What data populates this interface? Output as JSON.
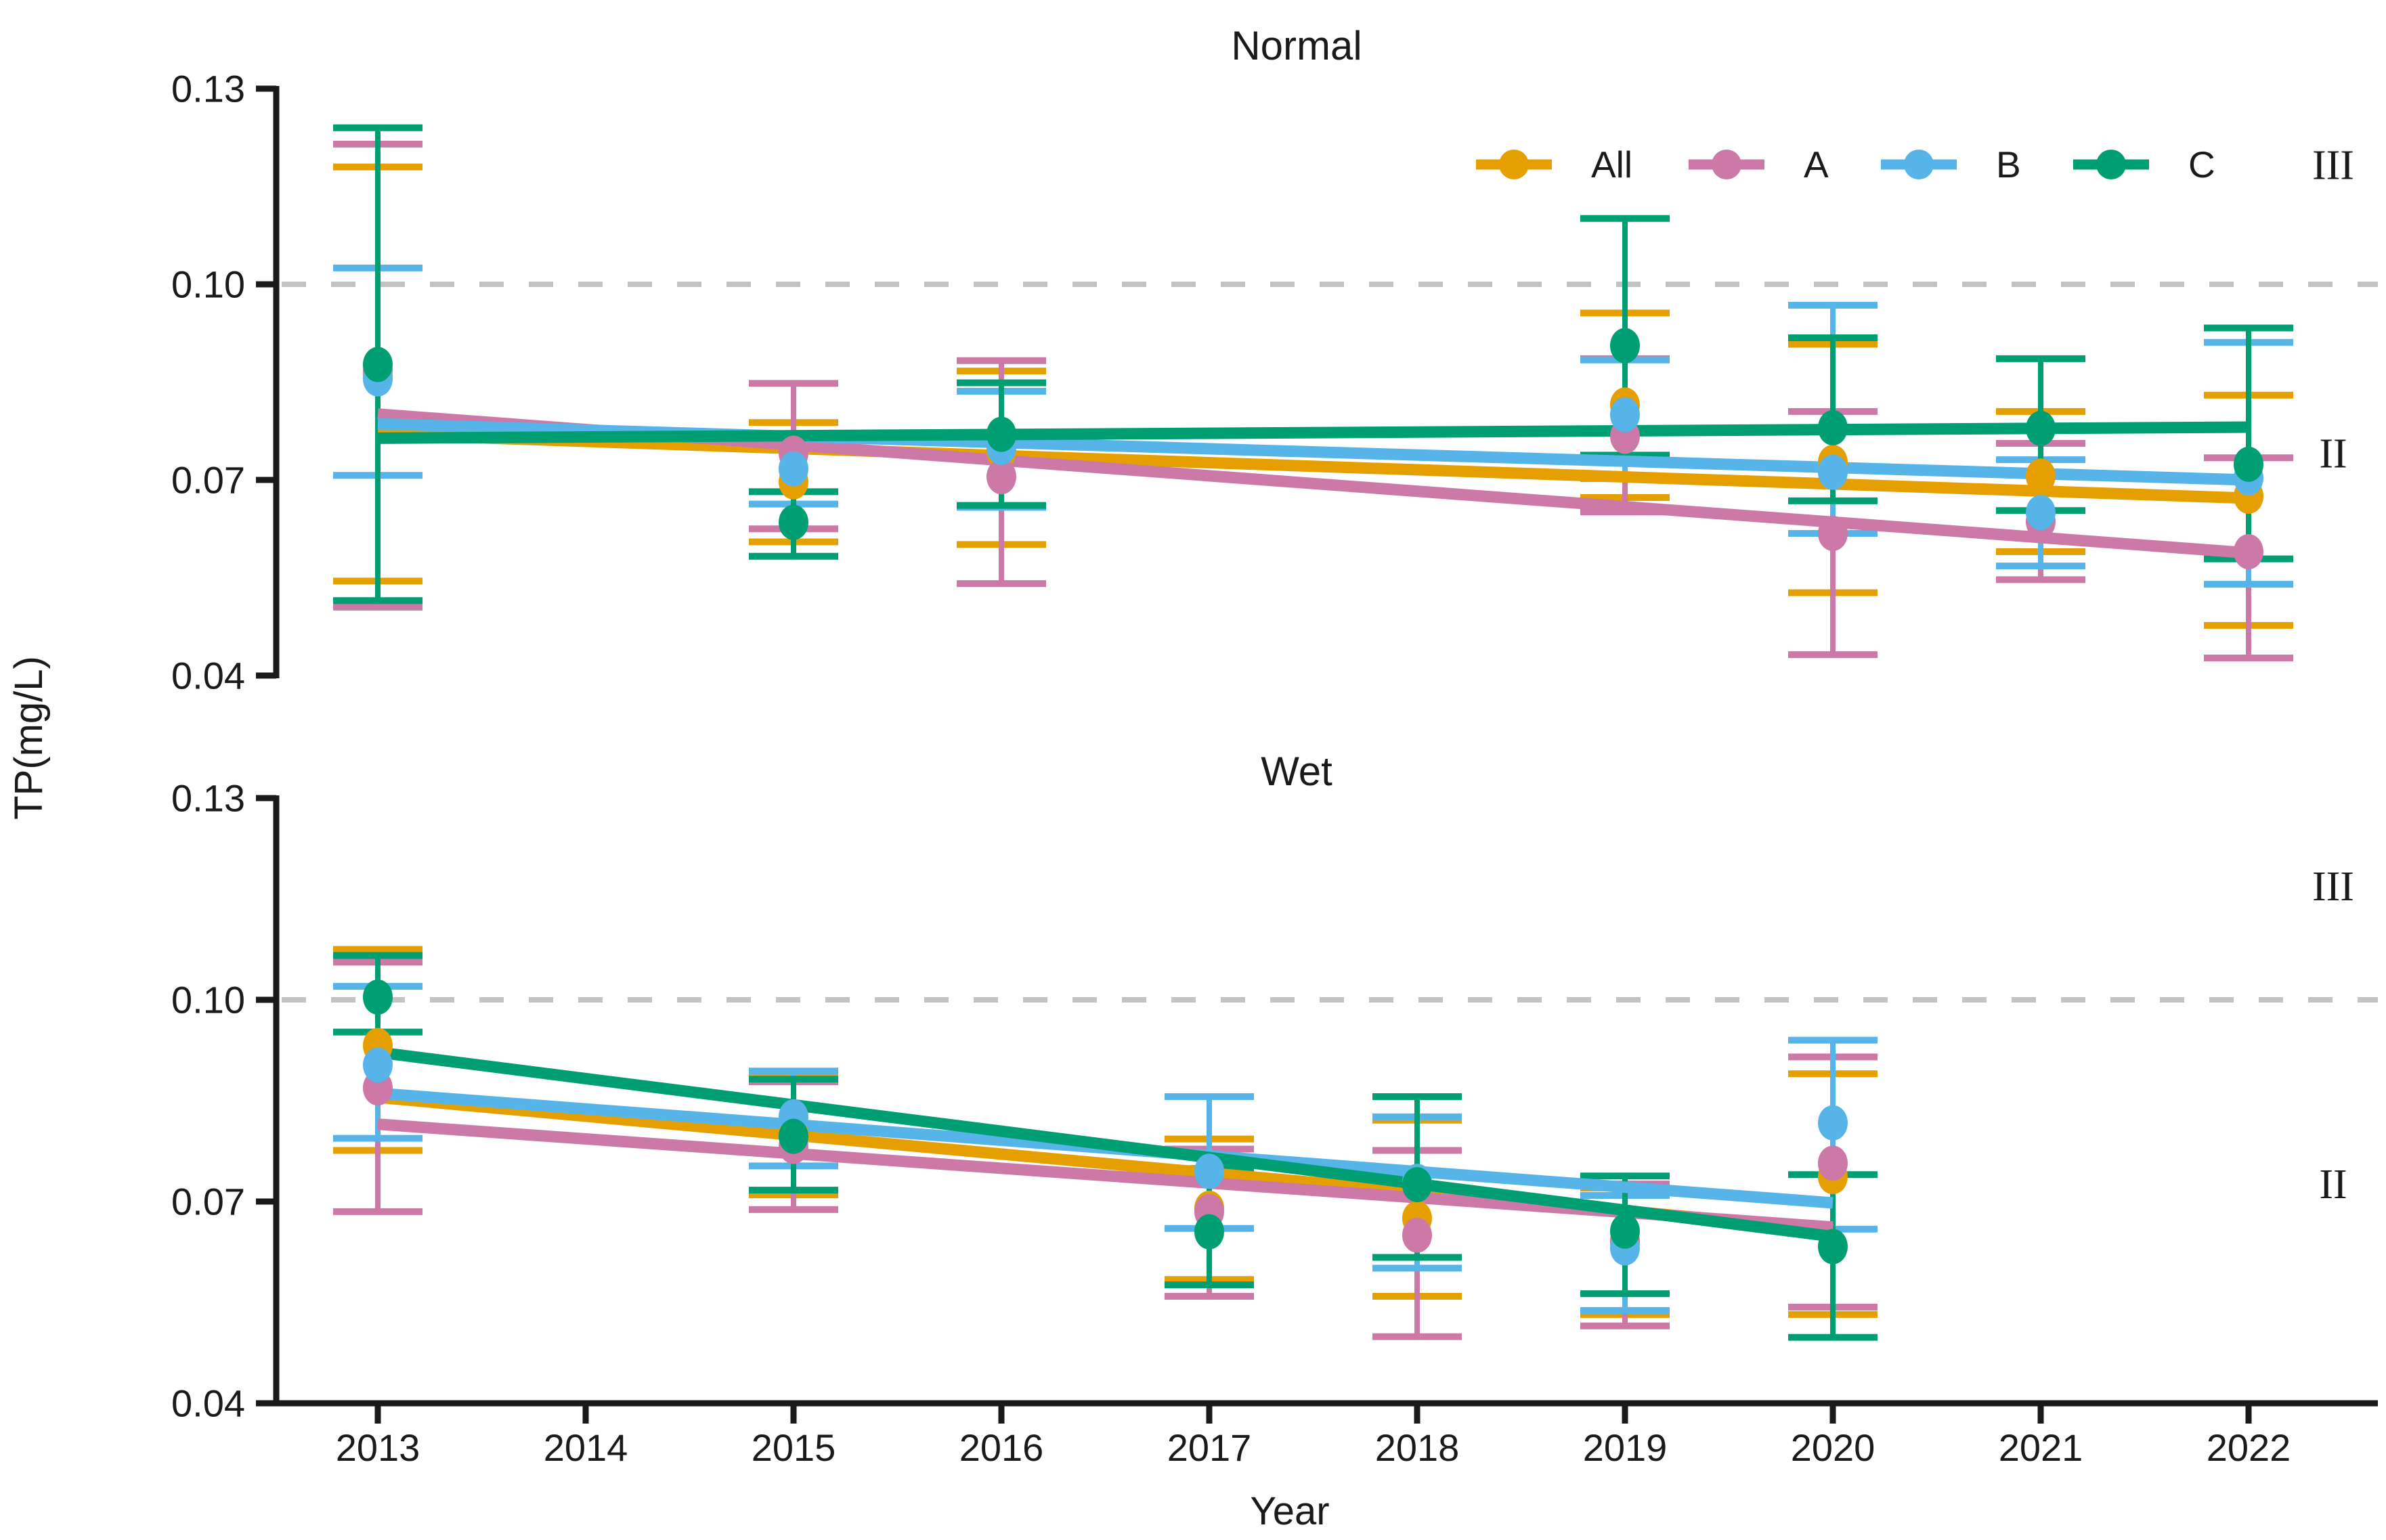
{
  "figure": {
    "ylabel": "TP(mg/L)",
    "xlabel": "Year",
    "legend_labels": [
      "All",
      "A",
      "B",
      "C"
    ],
    "colors": {
      "All": "#E69F00",
      "A": "#CC79A7",
      "B": "#56B4E9",
      "C": "#009E73"
    },
    "axis_color": "#1a1a1a",
    "threshold_color": "#c2c2c2",
    "background": "#ffffff"
  },
  "chart_data": {
    "type": "scatter",
    "subtype": "points-with-errorbars-and-linear-trends",
    "x_years": [
      2013,
      2014,
      2015,
      2016,
      2017,
      2018,
      2019,
      2020,
      2021,
      2022
    ],
    "yticks": [
      0.04,
      0.07,
      0.1,
      0.13
    ],
    "ylim": [
      0.04,
      0.132
    ],
    "threshold": 0.1,
    "grid": "off",
    "legend_position": "top-right-inside",
    "panels": [
      {
        "title": "Normal",
        "region_labels": [
          {
            "text": "III",
            "v": 0.1182
          },
          {
            "text": "II",
            "v": 0.074
          }
        ],
        "series": [
          {
            "name": "All",
            "trend": {
              "year0": 2013,
              "v0": 0.077,
              "year1": 2022,
              "v1": 0.0672
            },
            "points": [
              {
                "year": 2013,
                "v": 0.086,
                "lo": 0.0545,
                "hi": 0.118
              },
              {
                "year": 2015,
                "v": 0.0697,
                "lo": 0.0605,
                "hi": 0.0788
              },
              {
                "year": 2016,
                "v": 0.0744,
                "lo": 0.0601,
                "hi": 0.0867
              },
              {
                "year": 2019,
                "v": 0.0815,
                "lo": 0.0673,
                "hi": 0.0956
              },
              {
                "year": 2020,
                "v": 0.0727,
                "lo": 0.0527,
                "hi": 0.0908
              },
              {
                "year": 2021,
                "v": 0.0706,
                "lo": 0.059,
                "hi": 0.0805
              },
              {
                "year": 2022,
                "v": 0.0675,
                "lo": 0.0477,
                "hi": 0.083
              }
            ]
          },
          {
            "name": "A",
            "trend": {
              "year0": 2013,
              "v0": 0.0801,
              "year1": 2022,
              "v1": 0.0588
            },
            "points": [
              {
                "year": 2013,
                "v": 0.0868,
                "lo": 0.0505,
                "hi": 0.1215
              },
              {
                "year": 2015,
                "v": 0.0741,
                "lo": 0.0625,
                "hi": 0.0848
              },
              {
                "year": 2016,
                "v": 0.0705,
                "lo": 0.0541,
                "hi": 0.0883
              },
              {
                "year": 2019,
                "v": 0.0767,
                "lo": 0.0651,
                "hi": 0.0886
              },
              {
                "year": 2020,
                "v": 0.0618,
                "lo": 0.0432,
                "hi": 0.0805
              },
              {
                "year": 2021,
                "v": 0.0636,
                "lo": 0.0547,
                "hi": 0.0756
              },
              {
                "year": 2022,
                "v": 0.059,
                "lo": 0.0427,
                "hi": 0.0734
              }
            ]
          },
          {
            "name": "B",
            "trend": {
              "year0": 2013,
              "v0": 0.0786,
              "year1": 2022,
              "v1": 0.07
            },
            "points": [
              {
                "year": 2013,
                "v": 0.0855,
                "lo": 0.0707,
                "hi": 0.1025
              },
              {
                "year": 2015,
                "v": 0.0717,
                "lo": 0.0663,
                "hi": 0.0767
              },
              {
                "year": 2016,
                "v": 0.075,
                "lo": 0.0658,
                "hi": 0.0836
              },
              {
                "year": 2019,
                "v": 0.08,
                "lo": 0.0702,
                "hi": 0.0884
              },
              {
                "year": 2020,
                "v": 0.0712,
                "lo": 0.0618,
                "hi": 0.0968
              },
              {
                "year": 2021,
                "v": 0.065,
                "lo": 0.0568,
                "hi": 0.0731
              },
              {
                "year": 2022,
                "v": 0.0703,
                "lo": 0.054,
                "hi": 0.0911
              }
            ]
          },
          {
            "name": "C",
            "trend": {
              "year0": 2013,
              "v0": 0.0764,
              "year1": 2022,
              "v1": 0.0781
            },
            "points": [
              {
                "year": 2013,
                "v": 0.0877,
                "lo": 0.0515,
                "hi": 0.124
              },
              {
                "year": 2015,
                "v": 0.0635,
                "lo": 0.0583,
                "hi": 0.0682
              },
              {
                "year": 2016,
                "v": 0.077,
                "lo": 0.0661,
                "hi": 0.0849
              },
              {
                "year": 2019,
                "v": 0.0906,
                "lo": 0.0738,
                "hi": 0.1101
              },
              {
                "year": 2020,
                "v": 0.078,
                "lo": 0.0668,
                "hi": 0.0918
              },
              {
                "year": 2021,
                "v": 0.0779,
                "lo": 0.0653,
                "hi": 0.0886
              },
              {
                "year": 2022,
                "v": 0.0724,
                "lo": 0.0579,
                "hi": 0.0933
              }
            ]
          }
        ]
      },
      {
        "title": "Wet",
        "region_labels": [
          {
            "text": "III",
            "v": 0.1168
          },
          {
            "text": "II",
            "v": 0.0725
          }
        ],
        "series": [
          {
            "name": "All",
            "trend": {
              "year0": 2013,
              "v0": 0.0855,
              "year1": 2020,
              "v1": 0.0658
            },
            "points": [
              {
                "year": 2013,
                "v": 0.0932,
                "lo": 0.0776,
                "hi": 0.1075
              },
              {
                "year": 2015,
                "v": 0.08,
                "lo": 0.071,
                "hi": 0.0885
              },
              {
                "year": 2017,
                "v": 0.069,
                "lo": 0.0584,
                "hi": 0.0793
              },
              {
                "year": 2018,
                "v": 0.0675,
                "lo": 0.0559,
                "hi": 0.0821
              },
              {
                "year": 2019,
                "v": 0.0642,
                "lo": 0.0532,
                "hi": 0.072
              },
              {
                "year": 2020,
                "v": 0.0737,
                "lo": 0.0532,
                "hi": 0.089
              }
            ]
          },
          {
            "name": "A",
            "trend": {
              "year0": 2013,
              "v0": 0.0815,
              "year1": 2020,
              "v1": 0.0662
            },
            "points": [
              {
                "year": 2013,
                "v": 0.0869,
                "lo": 0.0685,
                "hi": 0.1056
              },
              {
                "year": 2015,
                "v": 0.0782,
                "lo": 0.0688,
                "hi": 0.0878
              },
              {
                "year": 2017,
                "v": 0.0685,
                "lo": 0.0559,
                "hi": 0.0778
              },
              {
                "year": 2018,
                "v": 0.065,
                "lo": 0.0499,
                "hi": 0.0776
              },
              {
                "year": 2019,
                "v": 0.064,
                "lo": 0.0515,
                "hi": 0.0726
              },
              {
                "year": 2020,
                "v": 0.0757,
                "lo": 0.0543,
                "hi": 0.0915
              }
            ]
          },
          {
            "name": "B",
            "trend": {
              "year0": 2013,
              "v0": 0.0861,
              "year1": 2020,
              "v1": 0.0698
            },
            "points": [
              {
                "year": 2013,
                "v": 0.0903,
                "lo": 0.0794,
                "hi": 0.102
              },
              {
                "year": 2015,
                "v": 0.0826,
                "lo": 0.0753,
                "hi": 0.0894
              },
              {
                "year": 2017,
                "v": 0.0745,
                "lo": 0.066,
                "hi": 0.0856
              },
              {
                "year": 2018,
                "v": 0.073,
                "lo": 0.0601,
                "hi": 0.0826
              },
              {
                "year": 2019,
                "v": 0.0631,
                "lo": 0.0538,
                "hi": 0.0709
              },
              {
                "year": 2020,
                "v": 0.0817,
                "lo": 0.0659,
                "hi": 0.094
              }
            ]
          },
          {
            "name": "C",
            "trend": {
              "year0": 2013,
              "v0": 0.0922,
              "year1": 2020,
              "v1": 0.0648
            },
            "points": [
              {
                "year": 2013,
                "v": 0.1004,
                "lo": 0.0952,
                "hi": 0.1066
              },
              {
                "year": 2015,
                "v": 0.0797,
                "lo": 0.0717,
                "hi": 0.0882
              },
              {
                "year": 2017,
                "v": 0.0655,
                "lo": 0.0576,
                "hi": 0.0749
              },
              {
                "year": 2018,
                "v": 0.0725,
                "lo": 0.0617,
                "hi": 0.0856
              },
              {
                "year": 2019,
                "v": 0.0656,
                "lo": 0.0563,
                "hi": 0.0738
              },
              {
                "year": 2020,
                "v": 0.0633,
                "lo": 0.0498,
                "hi": 0.074
              }
            ]
          }
        ]
      }
    ]
  }
}
